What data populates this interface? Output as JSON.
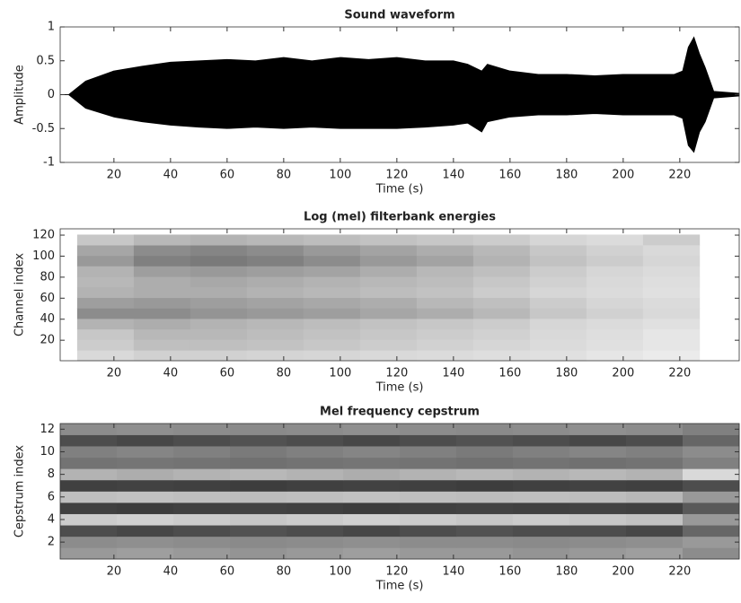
{
  "chart_data": [
    {
      "type": "area",
      "title": "Sound waveform",
      "xlabel": "Time (s)",
      "ylabel": "Amplitude",
      "color": "#000000",
      "x": [
        1,
        4,
        10,
        20,
        30,
        40,
        50,
        60,
        70,
        80,
        90,
        100,
        110,
        120,
        130,
        140,
        145,
        150,
        152,
        160,
        170,
        180,
        190,
        200,
        210,
        218,
        221,
        223,
        225,
        227,
        229,
        232,
        241
      ],
      "upper": [
        0,
        0,
        0.2,
        0.35,
        0.42,
        0.48,
        0.5,
        0.52,
        0.5,
        0.55,
        0.5,
        0.55,
        0.52,
        0.55,
        0.5,
        0.5,
        0.45,
        0.35,
        0.45,
        0.35,
        0.3,
        0.3,
        0.28,
        0.3,
        0.3,
        0.3,
        0.35,
        0.7,
        0.85,
        0.6,
        0.4,
        0.05,
        0.02
      ],
      "lower": [
        0,
        0,
        -0.2,
        -0.33,
        -0.4,
        -0.45,
        -0.48,
        -0.5,
        -0.48,
        -0.5,
        -0.48,
        -0.5,
        -0.5,
        -0.5,
        -0.48,
        -0.45,
        -0.42,
        -0.55,
        -0.4,
        -0.33,
        -0.3,
        -0.3,
        -0.28,
        -0.3,
        -0.3,
        -0.3,
        -0.35,
        -0.75,
        -0.85,
        -0.55,
        -0.4,
        -0.05,
        -0.02
      ],
      "xlim": [
        1,
        241
      ],
      "xticks": [
        20,
        40,
        60,
        80,
        100,
        120,
        140,
        160,
        180,
        200,
        220
      ],
      "ylim": [
        -1,
        1
      ],
      "yticks": [
        -1,
        -0.5,
        0,
        0.5,
        1
      ]
    },
    {
      "type": "heatmap",
      "title": "Log (mel) filterbank energies",
      "xlabel": "Time (s)",
      "ylabel": "Channel index",
      "colormap": "gray",
      "clim": [
        0,
        1
      ],
      "xbins": [
        7,
        27,
        47,
        67,
        87,
        107,
        127,
        147,
        167,
        187,
        207,
        227
      ],
      "ybins": [
        0.5,
        10.5,
        20.5,
        30.5,
        40.5,
        50.5,
        60.5,
        70.5,
        80.5,
        90.5,
        100.5,
        110.5,
        120.5
      ],
      "values": [
        [
          0.85,
          0.82,
          0.82,
          0.83,
          0.84,
          0.85,
          0.86,
          0.87,
          0.88,
          0.9,
          0.92
        ],
        [
          0.8,
          0.75,
          0.75,
          0.76,
          0.78,
          0.8,
          0.82,
          0.84,
          0.86,
          0.88,
          0.9
        ],
        [
          0.78,
          0.72,
          0.72,
          0.74,
          0.76,
          0.78,
          0.8,
          0.82,
          0.85,
          0.87,
          0.9
        ],
        [
          0.7,
          0.68,
          0.7,
          0.72,
          0.74,
          0.76,
          0.78,
          0.8,
          0.84,
          0.86,
          0.88
        ],
        [
          0.55,
          0.55,
          0.58,
          0.6,
          0.62,
          0.65,
          0.68,
          0.72,
          0.78,
          0.82,
          0.85
        ],
        [
          0.62,
          0.6,
          0.62,
          0.64,
          0.66,
          0.68,
          0.72,
          0.75,
          0.8,
          0.84,
          0.86
        ],
        [
          0.7,
          0.68,
          0.68,
          0.7,
          0.72,
          0.74,
          0.76,
          0.8,
          0.84,
          0.86,
          0.88
        ],
        [
          0.72,
          0.68,
          0.66,
          0.68,
          0.7,
          0.72,
          0.74,
          0.78,
          0.82,
          0.85,
          0.87
        ],
        [
          0.7,
          0.62,
          0.6,
          0.62,
          0.64,
          0.68,
          0.72,
          0.75,
          0.8,
          0.84,
          0.86
        ],
        [
          0.6,
          0.5,
          0.48,
          0.5,
          0.55,
          0.6,
          0.64,
          0.7,
          0.76,
          0.8,
          0.84
        ],
        [
          0.65,
          0.55,
          0.52,
          0.55,
          0.6,
          0.64,
          0.68,
          0.72,
          0.78,
          0.82,
          0.85
        ],
        [
          0.78,
          0.72,
          0.7,
          0.72,
          0.74,
          0.76,
          0.78,
          0.8,
          0.84,
          0.86,
          0.8
        ]
      ],
      "xlim": [
        1,
        241
      ],
      "xticks": [
        20,
        40,
        60,
        80,
        100,
        120,
        140,
        160,
        180,
        200,
        220
      ],
      "ylim": [
        0.5,
        126
      ],
      "yticks": [
        20,
        40,
        60,
        80,
        100,
        120
      ]
    },
    {
      "type": "heatmap",
      "title": "Mel frequency cepstrum",
      "xlabel": "Time (s)",
      "ylabel": "Cepstrum index",
      "colormap": "gray",
      "clim": [
        0,
        1
      ],
      "xbins": [
        1,
        21,
        41,
        61,
        81,
        101,
        121,
        141,
        161,
        181,
        201,
        221,
        241
      ],
      "ybins": [
        0.5,
        1.5,
        2.5,
        3.5,
        4.5,
        5.5,
        6.5,
        7.5,
        8.5,
        9.5,
        10.5,
        11.5,
        12.5
      ],
      "values": [
        [
          0.6,
          0.62,
          0.6,
          0.58,
          0.6,
          0.62,
          0.6,
          0.6,
          0.58,
          0.6,
          0.62,
          0.55
        ],
        [
          0.55,
          0.56,
          0.55,
          0.54,
          0.55,
          0.56,
          0.55,
          0.55,
          0.54,
          0.55,
          0.56,
          0.6
        ],
        [
          0.3,
          0.28,
          0.3,
          0.32,
          0.3,
          0.28,
          0.3,
          0.32,
          0.3,
          0.3,
          0.28,
          0.4
        ],
        [
          0.8,
          0.82,
          0.8,
          0.78,
          0.8,
          0.82,
          0.8,
          0.78,
          0.8,
          0.78,
          0.76,
          0.6
        ],
        [
          0.25,
          0.24,
          0.25,
          0.26,
          0.25,
          0.24,
          0.25,
          0.26,
          0.25,
          0.26,
          0.25,
          0.35
        ],
        [
          0.75,
          0.76,
          0.75,
          0.74,
          0.75,
          0.76,
          0.75,
          0.74,
          0.75,
          0.74,
          0.72,
          0.6
        ],
        [
          0.25,
          0.26,
          0.25,
          0.24,
          0.25,
          0.26,
          0.25,
          0.24,
          0.25,
          0.26,
          0.25,
          0.3
        ],
        [
          0.7,
          0.68,
          0.7,
          0.72,
          0.7,
          0.68,
          0.7,
          0.72,
          0.7,
          0.72,
          0.7,
          0.85
        ],
        [
          0.45,
          0.46,
          0.45,
          0.44,
          0.45,
          0.46,
          0.45,
          0.44,
          0.45,
          0.44,
          0.45,
          0.5
        ],
        [
          0.5,
          0.52,
          0.5,
          0.48,
          0.5,
          0.52,
          0.5,
          0.48,
          0.5,
          0.52,
          0.5,
          0.55
        ],
        [
          0.3,
          0.28,
          0.3,
          0.32,
          0.3,
          0.28,
          0.3,
          0.32,
          0.3,
          0.28,
          0.3,
          0.4
        ],
        [
          0.55,
          0.56,
          0.55,
          0.54,
          0.55,
          0.56,
          0.55,
          0.54,
          0.55,
          0.56,
          0.55,
          0.5
        ]
      ],
      "xlim": [
        1,
        241
      ],
      "xticks": [
        20,
        40,
        60,
        80,
        100,
        120,
        140,
        160,
        180,
        200,
        220
      ],
      "ylim": [
        0.5,
        12.5
      ],
      "yticks": [
        2,
        4,
        6,
        8,
        10,
        12
      ]
    }
  ]
}
